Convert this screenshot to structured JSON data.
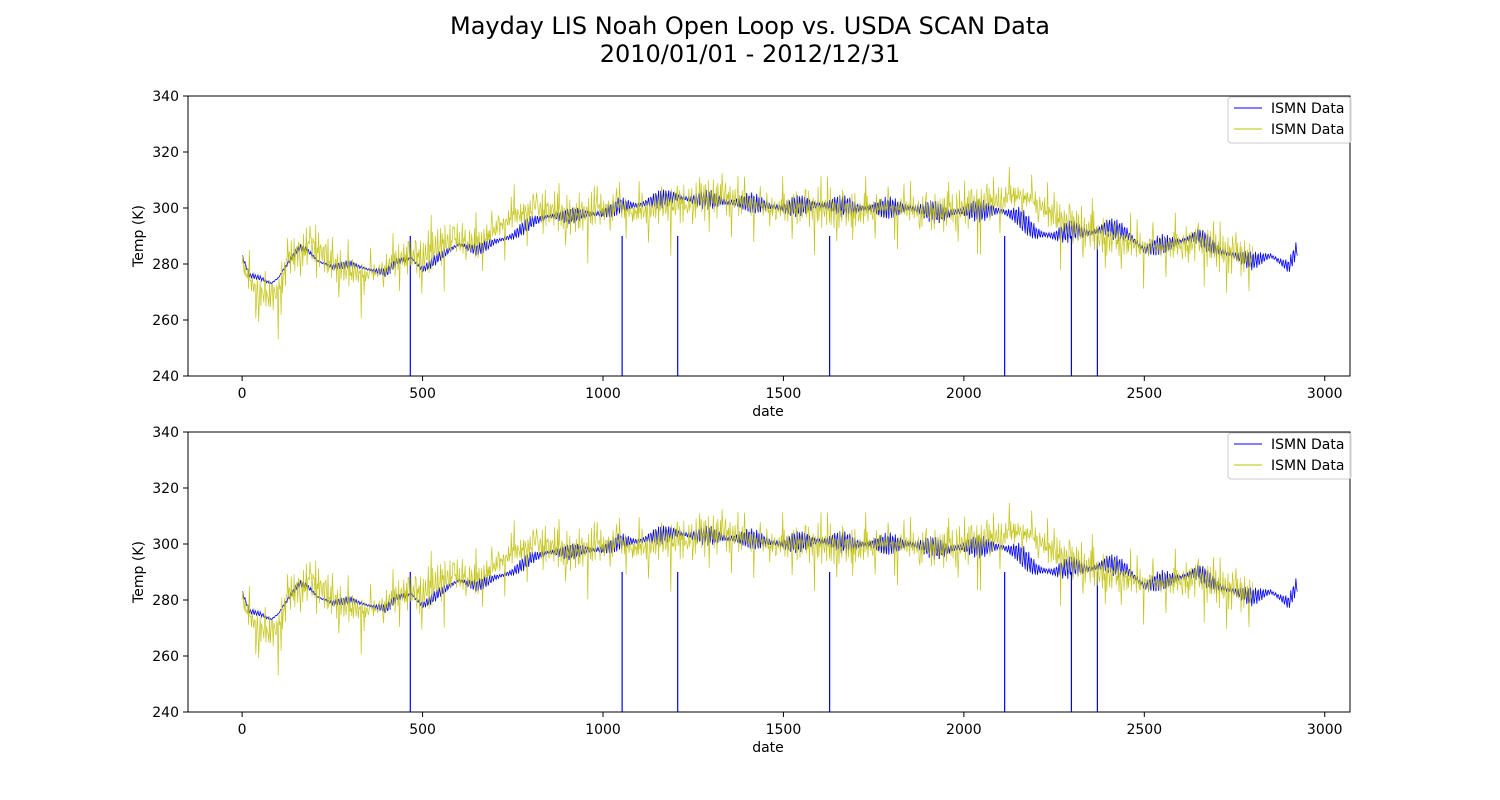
{
  "figure": {
    "title_line1": "Mayday LIS Noah Open Loop vs. USDA SCAN Data",
    "title_line2": "2010/01/01 - 2012/12/31"
  },
  "colors": {
    "series_blue": "#0000ff",
    "series_olive": "#bfbf00"
  },
  "chart_data": [
    {
      "type": "line",
      "xlabel": "date",
      "ylabel": "Temp (K)",
      "xlim": [
        -150,
        3070
      ],
      "ylim": [
        240,
        340
      ],
      "xticks": [
        0,
        500,
        1000,
        1500,
        2000,
        2500,
        3000
      ],
      "yticks": [
        240,
        260,
        280,
        300,
        320,
        340
      ],
      "grid": false,
      "legend": "top-right",
      "series": [
        {
          "name": "ISMN Data",
          "color": "#0000ff",
          "x": [
            0,
            20,
            50,
            80,
            100,
            130,
            160,
            180,
            210,
            250,
            300,
            350,
            400,
            430,
            470,
            500,
            550,
            600,
            650,
            700,
            750,
            800,
            850,
            900,
            950,
            1000,
            1050,
            1100,
            1150,
            1200,
            1250,
            1300,
            1350,
            1400,
            1450,
            1500,
            1550,
            1600,
            1650,
            1700,
            1750,
            1800,
            1850,
            1900,
            1950,
            2000,
            2050,
            2100,
            2150,
            2200,
            2250,
            2300,
            2350,
            2400,
            2450,
            2500,
            2550,
            2600,
            2650,
            2700,
            2750,
            2800,
            2850,
            2900,
            2925
          ],
          "y": [
            283,
            276,
            275,
            273,
            275,
            281,
            286,
            285,
            281,
            279,
            280,
            278,
            277,
            281,
            282,
            278,
            283,
            287,
            285,
            288,
            290,
            295,
            297,
            297,
            298,
            298,
            301,
            301,
            303,
            304,
            303,
            303,
            302,
            302,
            301,
            300,
            301,
            301,
            301,
            300,
            300,
            300,
            300,
            299,
            298,
            299,
            299,
            299,
            297,
            291,
            290,
            292,
            291,
            293,
            291,
            285,
            287,
            288,
            290,
            285,
            283,
            281,
            283,
            279,
            286
          ],
          "dropouts_x": [
            466,
            1053,
            1207,
            1628,
            2113,
            2298,
            2370
          ]
        },
        {
          "name": "ISMN Data",
          "color": "#bfbf00",
          "x": [
            0,
            20,
            40,
            70,
            100,
            130,
            160,
            200,
            250,
            300,
            350,
            400,
            450,
            500,
            550,
            600,
            650,
            700,
            750,
            800,
            850,
            900,
            950,
            1000,
            1050,
            1100,
            1150,
            1200,
            1250,
            1300,
            1350,
            1400,
            1450,
            1500,
            1550,
            1600,
            1650,
            1700,
            1750,
            1800,
            1850,
            1900,
            1950,
            2000,
            2050,
            2100,
            2150,
            2200,
            2250,
            2300,
            2350,
            2400,
            2450,
            2500,
            2550,
            2600,
            2650,
            2700,
            2750,
            2800
          ],
          "y": [
            280,
            274,
            271,
            268,
            270,
            282,
            285,
            287,
            280,
            277,
            276,
            279,
            283,
            282,
            287,
            289,
            287,
            292,
            297,
            299,
            300,
            297,
            298,
            300,
            300,
            298,
            300,
            301,
            302,
            304,
            303,
            302,
            300,
            300,
            300,
            300,
            299,
            299,
            300,
            300,
            300,
            298,
            299,
            300,
            301,
            303,
            305,
            302,
            297,
            294,
            292,
            289,
            288,
            286,
            286,
            287,
            288,
            285,
            283,
            282
          ]
        }
      ]
    },
    {
      "type": "line",
      "xlabel": "date",
      "ylabel": "Temp (K)",
      "xlim": [
        -150,
        3070
      ],
      "ylim": [
        240,
        340
      ],
      "xticks": [
        0,
        500,
        1000,
        1500,
        2000,
        2500,
        3000
      ],
      "yticks": [
        240,
        260,
        280,
        300,
        320,
        340
      ],
      "grid": false,
      "legend": "top-right",
      "series": [
        {
          "name": "ISMN Data",
          "color": "#0000ff",
          "x": [
            0,
            20,
            50,
            80,
            100,
            130,
            160,
            180,
            210,
            250,
            300,
            350,
            400,
            430,
            470,
            500,
            550,
            600,
            650,
            700,
            750,
            800,
            850,
            900,
            950,
            1000,
            1050,
            1100,
            1150,
            1200,
            1250,
            1300,
            1350,
            1400,
            1450,
            1500,
            1550,
            1600,
            1650,
            1700,
            1750,
            1800,
            1850,
            1900,
            1950,
            2000,
            2050,
            2100,
            2150,
            2200,
            2250,
            2300,
            2350,
            2400,
            2450,
            2500,
            2550,
            2600,
            2650,
            2700,
            2750,
            2800,
            2850,
            2900,
            2925
          ],
          "y": [
            283,
            276,
            275,
            273,
            275,
            281,
            286,
            285,
            281,
            279,
            280,
            278,
            277,
            281,
            282,
            278,
            283,
            287,
            285,
            288,
            290,
            295,
            297,
            297,
            298,
            298,
            301,
            301,
            303,
            304,
            303,
            303,
            302,
            302,
            301,
            300,
            301,
            301,
            301,
            300,
            300,
            300,
            300,
            299,
            298,
            299,
            299,
            299,
            297,
            291,
            290,
            292,
            291,
            293,
            291,
            285,
            287,
            288,
            290,
            285,
            283,
            281,
            283,
            279,
            286
          ],
          "dropouts_x": [
            466,
            1053,
            1207,
            1628,
            2113,
            2298,
            2370
          ]
        },
        {
          "name": "ISMN Data",
          "color": "#bfbf00",
          "x": [
            0,
            20,
            40,
            70,
            100,
            130,
            160,
            200,
            250,
            300,
            350,
            400,
            450,
            500,
            550,
            600,
            650,
            700,
            750,
            800,
            850,
            900,
            950,
            1000,
            1050,
            1100,
            1150,
            1200,
            1250,
            1300,
            1350,
            1400,
            1450,
            1500,
            1550,
            1600,
            1650,
            1700,
            1750,
            1800,
            1850,
            1900,
            1950,
            2000,
            2050,
            2100,
            2150,
            2200,
            2250,
            2300,
            2350,
            2400,
            2450,
            2500,
            2550,
            2600,
            2650,
            2700,
            2750,
            2800
          ],
          "y": [
            280,
            274,
            271,
            268,
            270,
            282,
            285,
            287,
            280,
            277,
            276,
            279,
            283,
            282,
            287,
            289,
            287,
            292,
            297,
            299,
            300,
            297,
            298,
            300,
            300,
            298,
            300,
            301,
            302,
            304,
            303,
            302,
            300,
            300,
            300,
            300,
            299,
            299,
            300,
            300,
            300,
            298,
            299,
            300,
            301,
            303,
            305,
            302,
            297,
            294,
            292,
            289,
            288,
            286,
            286,
            287,
            288,
            285,
            283,
            282
          ]
        }
      ]
    }
  ]
}
